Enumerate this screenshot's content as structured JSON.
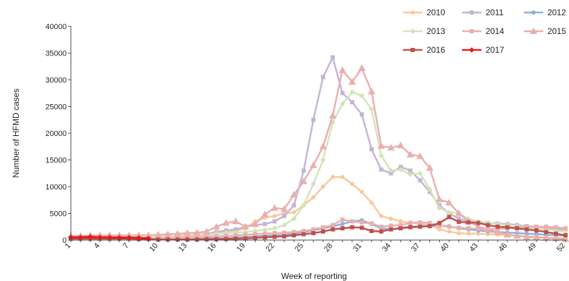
{
  "chart_data": {
    "type": "line",
    "title": "",
    "xlabel": "Week of reporting",
    "ylabel": "Number of HFMD cases",
    "x_ticks": [
      1,
      4,
      7,
      10,
      13,
      16,
      19,
      22,
      25,
      28,
      31,
      34,
      37,
      40,
      43,
      46,
      49,
      52
    ],
    "xlim": [
      1,
      52
    ],
    "ylim": [
      0,
      40000
    ],
    "y_ticks": [
      0,
      5000,
      10000,
      15000,
      20000,
      25000,
      30000,
      35000,
      40000
    ],
    "y_tick_labels": [
      "0",
      "5000",
      "10000",
      "15000",
      "20000",
      "25000",
      "30000",
      "35000",
      "40000"
    ],
    "grid": false,
    "legend_position": "top-right",
    "series": [
      {
        "name": "2010",
        "color": "#f9c99a",
        "marker": "circle",
        "x": [
          1,
          2,
          3,
          4,
          5,
          6,
          7,
          8,
          9,
          10,
          11,
          12,
          13,
          14,
          15,
          16,
          17,
          18,
          19,
          20,
          21,
          22,
          23,
          24,
          25,
          26,
          27,
          28,
          29,
          30,
          31,
          32,
          33,
          34,
          35,
          36,
          37,
          38,
          39,
          40,
          41,
          42,
          43,
          44,
          45,
          46,
          47,
          48,
          49,
          50,
          51,
          52
        ],
        "y": [
          300,
          350,
          400,
          450,
          450,
          450,
          450,
          450,
          500,
          500,
          550,
          600,
          700,
          800,
          900,
          1200,
          1500,
          1700,
          2200,
          3500,
          4200,
          4500,
          5000,
          5200,
          6500,
          8000,
          10000,
          11800,
          11800,
          10500,
          9000,
          7000,
          4500,
          4000,
          3500,
          3300,
          3000,
          2800,
          2000,
          1600,
          1300,
          1200,
          1200,
          1100,
          1000,
          900,
          800,
          700,
          600,
          500,
          400,
          300
        ]
      },
      {
        "name": "2011",
        "color": "#c4b4d6",
        "marker": "square",
        "x": [
          1,
          2,
          3,
          4,
          5,
          6,
          7,
          8,
          9,
          10,
          11,
          12,
          13,
          14,
          15,
          16,
          17,
          18,
          19,
          20,
          21,
          22,
          23,
          24,
          25,
          26,
          27,
          28,
          29,
          30,
          31,
          32,
          33,
          34,
          35,
          36,
          37,
          38,
          39,
          40,
          41,
          42,
          43,
          44,
          45,
          46,
          47,
          48,
          49,
          50,
          51,
          52
        ],
        "y": [
          400,
          400,
          500,
          500,
          500,
          500,
          500,
          500,
          500,
          600,
          700,
          800,
          900,
          1000,
          1200,
          1500,
          1800,
          2000,
          2500,
          2800,
          3000,
          3500,
          4500,
          6500,
          13000,
          22500,
          30500,
          34200,
          27500,
          25800,
          23500,
          17000,
          13200,
          12500,
          13700,
          13000,
          11200,
          9000,
          6500,
          5000,
          4000,
          3500,
          3300,
          3200,
          3100,
          3000,
          2800,
          2600,
          2500,
          2300,
          2100,
          1900
        ]
      },
      {
        "name": "2012",
        "color": "#8db0de",
        "marker": "circle",
        "x": [
          1,
          2,
          3,
          4,
          5,
          6,
          7,
          8,
          9,
          10,
          11,
          12,
          13,
          14,
          15,
          16,
          17,
          18,
          19,
          20,
          21,
          22,
          23,
          24,
          25,
          26,
          27,
          28,
          29,
          30,
          31,
          32,
          33,
          34,
          35,
          36,
          37,
          38,
          39,
          40,
          41,
          42,
          43,
          44,
          45,
          46,
          47,
          48,
          49,
          50,
          51,
          52
        ],
        "y": [
          150,
          150,
          150,
          150,
          150,
          150,
          150,
          150,
          150,
          150,
          150,
          150,
          200,
          250,
          300,
          350,
          400,
          500,
          600,
          700,
          800,
          900,
          1000,
          1200,
          1500,
          1800,
          2200,
          2600,
          3000,
          3500,
          3700,
          3000,
          2200,
          2000,
          2300,
          2500,
          2600,
          2700,
          2700,
          2600,
          2200,
          2000,
          1800,
          1600,
          1500,
          1400,
          1300,
          1200,
          1100,
          1000,
          900,
          800
        ]
      },
      {
        "name": "2013",
        "color": "#d3e4b8",
        "marker": "diamond",
        "x": [
          1,
          2,
          3,
          4,
          5,
          6,
          7,
          8,
          9,
          10,
          11,
          12,
          13,
          14,
          15,
          16,
          17,
          18,
          19,
          20,
          21,
          22,
          23,
          24,
          25,
          26,
          27,
          28,
          29,
          30,
          31,
          32,
          33,
          34,
          35,
          36,
          37,
          38,
          39,
          40,
          41,
          42,
          43,
          44,
          45,
          46,
          47,
          48,
          49,
          50,
          51,
          52
        ],
        "y": [
          500,
          500,
          500,
          500,
          500,
          500,
          500,
          500,
          500,
          600,
          700,
          800,
          900,
          1000,
          1100,
          1200,
          1300,
          1400,
          1500,
          1700,
          1900,
          2200,
          2800,
          4000,
          6500,
          10500,
          15000,
          22000,
          25500,
          27700,
          27000,
          24500,
          15800,
          13000,
          13200,
          12300,
          12500,
          9500,
          6000,
          5200,
          5000,
          4000,
          3500,
          3200,
          3000,
          2800,
          2600,
          2400,
          2200,
          2000,
          1800,
          1600
        ]
      },
      {
        "name": "2014",
        "color": "#e8b0ae",
        "marker": "square",
        "x": [
          1,
          2,
          3,
          4,
          5,
          6,
          7,
          8,
          9,
          10,
          11,
          12,
          13,
          14,
          15,
          16,
          17,
          18,
          19,
          20,
          21,
          22,
          23,
          24,
          25,
          26,
          27,
          28,
          29,
          30,
          31,
          32,
          33,
          34,
          35,
          36,
          37,
          38,
          39,
          40,
          41,
          42,
          43,
          44,
          45,
          46,
          47,
          48,
          49,
          50,
          51,
          52
        ],
        "y": [
          200,
          200,
          200,
          200,
          200,
          200,
          200,
          200,
          200,
          300,
          300,
          350,
          400,
          500,
          600,
          700,
          800,
          900,
          1000,
          1100,
          1200,
          1300,
          1400,
          1500,
          1700,
          2000,
          2400,
          2800,
          3800,
          3500,
          3300,
          3100,
          2500,
          2700,
          2800,
          3200,
          3300,
          3200,
          2700,
          2500,
          2300,
          2200,
          2100,
          2000,
          2100,
          2200,
          2300,
          2400,
          2500,
          2500,
          2400,
          2200
        ]
      },
      {
        "name": "2015",
        "color": "#e8b0ae",
        "marker": "triangle",
        "x": [
          1,
          2,
          3,
          4,
          5,
          6,
          7,
          8,
          9,
          10,
          11,
          12,
          13,
          14,
          15,
          16,
          17,
          18,
          19,
          20,
          21,
          22,
          23,
          24,
          25,
          26,
          27,
          28,
          29,
          30,
          31,
          32,
          33,
          34,
          35,
          36,
          37,
          38,
          39,
          40,
          41,
          42,
          43,
          44,
          45,
          46,
          47,
          48,
          49,
          50,
          51,
          52
        ],
        "y": [
          800,
          800,
          900,
          900,
          900,
          900,
          900,
          900,
          900,
          1000,
          1100,
          1200,
          1300,
          1400,
          1600,
          2500,
          3200,
          3500,
          2500,
          3000,
          4800,
          6000,
          5800,
          8500,
          11000,
          14000,
          17500,
          23300,
          31800,
          29600,
          32200,
          27800,
          17600,
          17300,
          17700,
          16000,
          15700,
          13500,
          7600,
          7000,
          5000,
          3500,
          2500,
          2000,
          1500,
          1000,
          800,
          600,
          500,
          400,
          300,
          200
        ]
      },
      {
        "name": "2016",
        "color": "#c0504d",
        "marker": "square",
        "x": [
          1,
          2,
          3,
          4,
          5,
          6,
          7,
          8,
          9,
          10,
          11,
          12,
          13,
          14,
          15,
          16,
          17,
          18,
          19,
          20,
          21,
          22,
          23,
          24,
          25,
          26,
          27,
          28,
          29,
          30,
          31,
          32,
          33,
          34,
          35,
          36,
          37,
          38,
          39,
          40,
          41,
          42,
          43,
          44,
          45,
          46,
          47,
          48,
          49,
          50,
          51,
          52
        ],
        "y": [
          300,
          300,
          300,
          300,
          300,
          300,
          300,
          200,
          200,
          100,
          100,
          100,
          100,
          100,
          150,
          150,
          200,
          250,
          300,
          400,
          500,
          600,
          700,
          900,
          1100,
          1300,
          1600,
          2000,
          2200,
          2400,
          2300,
          1700,
          1600,
          2000,
          2200,
          2400,
          2500,
          2600,
          3200,
          4300,
          3400,
          3300,
          3200,
          2800,
          2500,
          2400,
          2200,
          2000,
          1800,
          1500,
          1200,
          900
        ]
      },
      {
        "name": "2017",
        "color": "#e31a1c",
        "marker": "diamond",
        "x": [
          1,
          2,
          3,
          4,
          5,
          6,
          7,
          8,
          9
        ],
        "y": [
          500,
          500,
          600,
          500,
          500,
          450,
          450,
          400,
          300
        ]
      }
    ]
  }
}
